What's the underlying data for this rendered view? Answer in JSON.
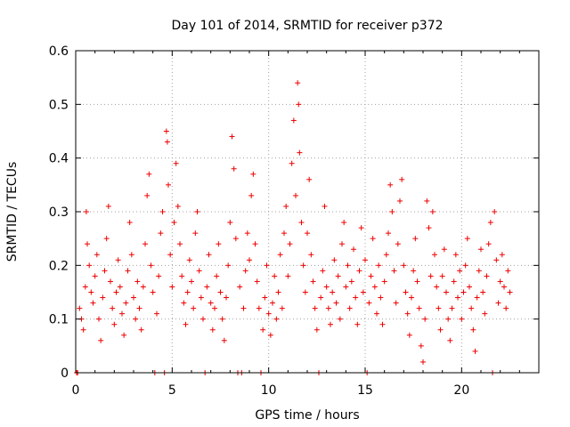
{
  "chart_data": {
    "type": "scatter",
    "title": "Day 101 of 2014, SRMTID for receiver p372",
    "xlabel": "GPS time / hours",
    "ylabel": "SRMTID / TECUs",
    "xlim": [
      0,
      24
    ],
    "ylim": [
      0,
      0.6
    ],
    "xticks": [
      0,
      5,
      10,
      15,
      20
    ],
    "xtick_labels": [
      "0",
      "5",
      "10",
      "15",
      "20"
    ],
    "yticks": [
      0,
      0.1,
      0.2,
      0.3,
      0.4,
      0.5,
      0.6
    ],
    "ytick_labels": [
      "0",
      "0.1",
      "0.2",
      "0.3",
      "0.4",
      "0.5",
      "0.6"
    ],
    "grid": true,
    "marker": "+",
    "color": "#ee0000",
    "series": [
      {
        "name": "SRMTID",
        "points": [
          [
            0.05,
            0.0
          ],
          [
            0.1,
            0.0
          ],
          [
            0.2,
            0.12
          ],
          [
            0.3,
            0.1
          ],
          [
            0.4,
            0.08
          ],
          [
            0.5,
            0.16
          ],
          [
            0.55,
            0.3
          ],
          [
            0.6,
            0.24
          ],
          [
            0.7,
            0.2
          ],
          [
            0.8,
            0.15
          ],
          [
            0.9,
            0.13
          ],
          [
            1.0,
            0.18
          ],
          [
            1.1,
            0.22
          ],
          [
            1.2,
            0.1
          ],
          [
            1.3,
            0.06
          ],
          [
            1.4,
            0.14
          ],
          [
            1.5,
            0.19
          ],
          [
            1.6,
            0.25
          ],
          [
            1.7,
            0.31
          ],
          [
            1.8,
            0.17
          ],
          [
            1.9,
            0.12
          ],
          [
            2.0,
            0.09
          ],
          [
            2.1,
            0.15
          ],
          [
            2.2,
            0.21
          ],
          [
            2.3,
            0.16
          ],
          [
            2.4,
            0.11
          ],
          [
            2.5,
            0.07
          ],
          [
            2.6,
            0.13
          ],
          [
            2.7,
            0.19
          ],
          [
            2.8,
            0.28
          ],
          [
            2.9,
            0.22
          ],
          [
            3.0,
            0.14
          ],
          [
            3.1,
            0.1
          ],
          [
            3.2,
            0.17
          ],
          [
            3.3,
            0.12
          ],
          [
            3.4,
            0.08
          ],
          [
            3.5,
            0.16
          ],
          [
            3.6,
            0.24
          ],
          [
            3.7,
            0.33
          ],
          [
            3.8,
            0.37
          ],
          [
            3.9,
            0.2
          ],
          [
            4.0,
            0.15
          ],
          [
            4.1,
            0.0
          ],
          [
            4.2,
            0.11
          ],
          [
            4.3,
            0.18
          ],
          [
            4.4,
            0.26
          ],
          [
            4.5,
            0.3
          ],
          [
            4.6,
            0.0
          ],
          [
            4.7,
            0.45
          ],
          [
            4.75,
            0.43
          ],
          [
            4.8,
            0.35
          ],
          [
            4.9,
            0.22
          ],
          [
            5.0,
            0.16
          ],
          [
            5.1,
            0.28
          ],
          [
            5.2,
            0.39
          ],
          [
            5.3,
            0.31
          ],
          [
            5.4,
            0.24
          ],
          [
            5.5,
            0.18
          ],
          [
            5.6,
            0.13
          ],
          [
            5.7,
            0.09
          ],
          [
            5.8,
            0.15
          ],
          [
            5.9,
            0.21
          ],
          [
            6.0,
            0.17
          ],
          [
            6.1,
            0.12
          ],
          [
            6.2,
            0.26
          ],
          [
            6.3,
            0.3
          ],
          [
            6.4,
            0.19
          ],
          [
            6.5,
            0.14
          ],
          [
            6.6,
            0.1
          ],
          [
            6.7,
            0.0
          ],
          [
            6.8,
            0.16
          ],
          [
            6.9,
            0.22
          ],
          [
            7.0,
            0.13
          ],
          [
            7.1,
            0.08
          ],
          [
            7.2,
            0.12
          ],
          [
            7.3,
            0.18
          ],
          [
            7.4,
            0.24
          ],
          [
            7.5,
            0.15
          ],
          [
            7.6,
            0.1
          ],
          [
            7.7,
            0.06
          ],
          [
            7.8,
            0.14
          ],
          [
            7.9,
            0.2
          ],
          [
            8.0,
            0.28
          ],
          [
            8.1,
            0.44
          ],
          [
            8.2,
            0.38
          ],
          [
            8.3,
            0.25
          ],
          [
            8.4,
            0.0
          ],
          [
            8.5,
            0.16
          ],
          [
            8.6,
            0.0
          ],
          [
            8.7,
            0.12
          ],
          [
            8.8,
            0.19
          ],
          [
            8.9,
            0.26
          ],
          [
            9.0,
            0.21
          ],
          [
            9.1,
            0.33
          ],
          [
            9.2,
            0.37
          ],
          [
            9.3,
            0.24
          ],
          [
            9.4,
            0.17
          ],
          [
            9.5,
            0.12
          ],
          [
            9.6,
            0.0
          ],
          [
            9.7,
            0.08
          ],
          [
            9.8,
            0.14
          ],
          [
            9.9,
            0.2
          ],
          [
            10.0,
            0.11
          ],
          [
            10.1,
            0.07
          ],
          [
            10.2,
            0.13
          ],
          [
            10.3,
            0.18
          ],
          [
            10.4,
            0.1
          ],
          [
            10.5,
            0.15
          ],
          [
            10.6,
            0.22
          ],
          [
            10.7,
            0.12
          ],
          [
            10.8,
            0.26
          ],
          [
            10.9,
            0.31
          ],
          [
            11.0,
            0.18
          ],
          [
            11.1,
            0.24
          ],
          [
            11.2,
            0.39
          ],
          [
            11.3,
            0.47
          ],
          [
            11.4,
            0.33
          ],
          [
            11.5,
            0.54
          ],
          [
            11.55,
            0.5
          ],
          [
            11.6,
            0.41
          ],
          [
            11.7,
            0.28
          ],
          [
            11.8,
            0.2
          ],
          [
            11.9,
            0.15
          ],
          [
            12.0,
            0.26
          ],
          [
            12.1,
            0.36
          ],
          [
            12.2,
            0.22
          ],
          [
            12.3,
            0.17
          ],
          [
            12.4,
            0.12
          ],
          [
            12.5,
            0.08
          ],
          [
            12.6,
            0.0
          ],
          [
            12.7,
            0.14
          ],
          [
            12.8,
            0.19
          ],
          [
            12.9,
            0.31
          ],
          [
            13.0,
            0.16
          ],
          [
            13.1,
            0.12
          ],
          [
            13.2,
            0.09
          ],
          [
            13.3,
            0.15
          ],
          [
            13.4,
            0.21
          ],
          [
            13.5,
            0.13
          ],
          [
            13.6,
            0.18
          ],
          [
            13.7,
            0.1
          ],
          [
            13.8,
            0.24
          ],
          [
            13.9,
            0.28
          ],
          [
            14.0,
            0.16
          ],
          [
            14.1,
            0.2
          ],
          [
            14.2,
            0.12
          ],
          [
            14.3,
            0.17
          ],
          [
            14.4,
            0.23
          ],
          [
            14.5,
            0.14
          ],
          [
            14.6,
            0.09
          ],
          [
            14.7,
            0.19
          ],
          [
            14.8,
            0.27
          ],
          [
            14.9,
            0.15
          ],
          [
            15.0,
            0.21
          ],
          [
            15.1,
            0.0
          ],
          [
            15.2,
            0.13
          ],
          [
            15.3,
            0.18
          ],
          [
            15.4,
            0.25
          ],
          [
            15.5,
            0.16
          ],
          [
            15.6,
            0.11
          ],
          [
            15.7,
            0.2
          ],
          [
            15.8,
            0.14
          ],
          [
            15.9,
            0.09
          ],
          [
            16.0,
            0.17
          ],
          [
            16.1,
            0.22
          ],
          [
            16.2,
            0.26
          ],
          [
            16.3,
            0.35
          ],
          [
            16.4,
            0.3
          ],
          [
            16.5,
            0.19
          ],
          [
            16.6,
            0.13
          ],
          [
            16.7,
            0.24
          ],
          [
            16.8,
            0.32
          ],
          [
            16.9,
            0.36
          ],
          [
            17.0,
            0.2
          ],
          [
            17.1,
            0.15
          ],
          [
            17.2,
            0.11
          ],
          [
            17.3,
            0.07
          ],
          [
            17.4,
            0.14
          ],
          [
            17.5,
            0.19
          ],
          [
            17.6,
            0.25
          ],
          [
            17.7,
            0.17
          ],
          [
            17.8,
            0.12
          ],
          [
            17.9,
            0.05
          ],
          [
            18.0,
            0.02
          ],
          [
            18.1,
            0.1
          ],
          [
            18.2,
            0.32
          ],
          [
            18.3,
            0.27
          ],
          [
            18.4,
            0.18
          ],
          [
            18.5,
            0.3
          ],
          [
            18.6,
            0.22
          ],
          [
            18.7,
            0.16
          ],
          [
            18.8,
            0.12
          ],
          [
            18.9,
            0.08
          ],
          [
            19.0,
            0.18
          ],
          [
            19.1,
            0.23
          ],
          [
            19.2,
            0.15
          ],
          [
            19.3,
            0.1
          ],
          [
            19.4,
            0.06
          ],
          [
            19.5,
            0.12
          ],
          [
            19.6,
            0.17
          ],
          [
            19.7,
            0.22
          ],
          [
            19.8,
            0.14
          ],
          [
            19.9,
            0.19
          ],
          [
            20.0,
            0.1
          ],
          [
            20.1,
            0.15
          ],
          [
            20.2,
            0.2
          ],
          [
            20.3,
            0.25
          ],
          [
            20.4,
            0.16
          ],
          [
            20.5,
            0.12
          ],
          [
            20.6,
            0.08
          ],
          [
            20.7,
            0.04
          ],
          [
            20.8,
            0.14
          ],
          [
            20.9,
            0.19
          ],
          [
            21.0,
            0.23
          ],
          [
            21.1,
            0.15
          ],
          [
            21.2,
            0.11
          ],
          [
            21.3,
            0.18
          ],
          [
            21.4,
            0.24
          ],
          [
            21.5,
            0.28
          ],
          [
            21.6,
            0.0
          ],
          [
            21.7,
            0.3
          ],
          [
            21.8,
            0.21
          ],
          [
            21.9,
            0.13
          ],
          [
            22.0,
            0.17
          ],
          [
            22.1,
            0.22
          ],
          [
            22.2,
            0.16
          ],
          [
            22.3,
            0.12
          ],
          [
            22.4,
            0.19
          ],
          [
            22.5,
            0.15
          ]
        ]
      }
    ]
  }
}
